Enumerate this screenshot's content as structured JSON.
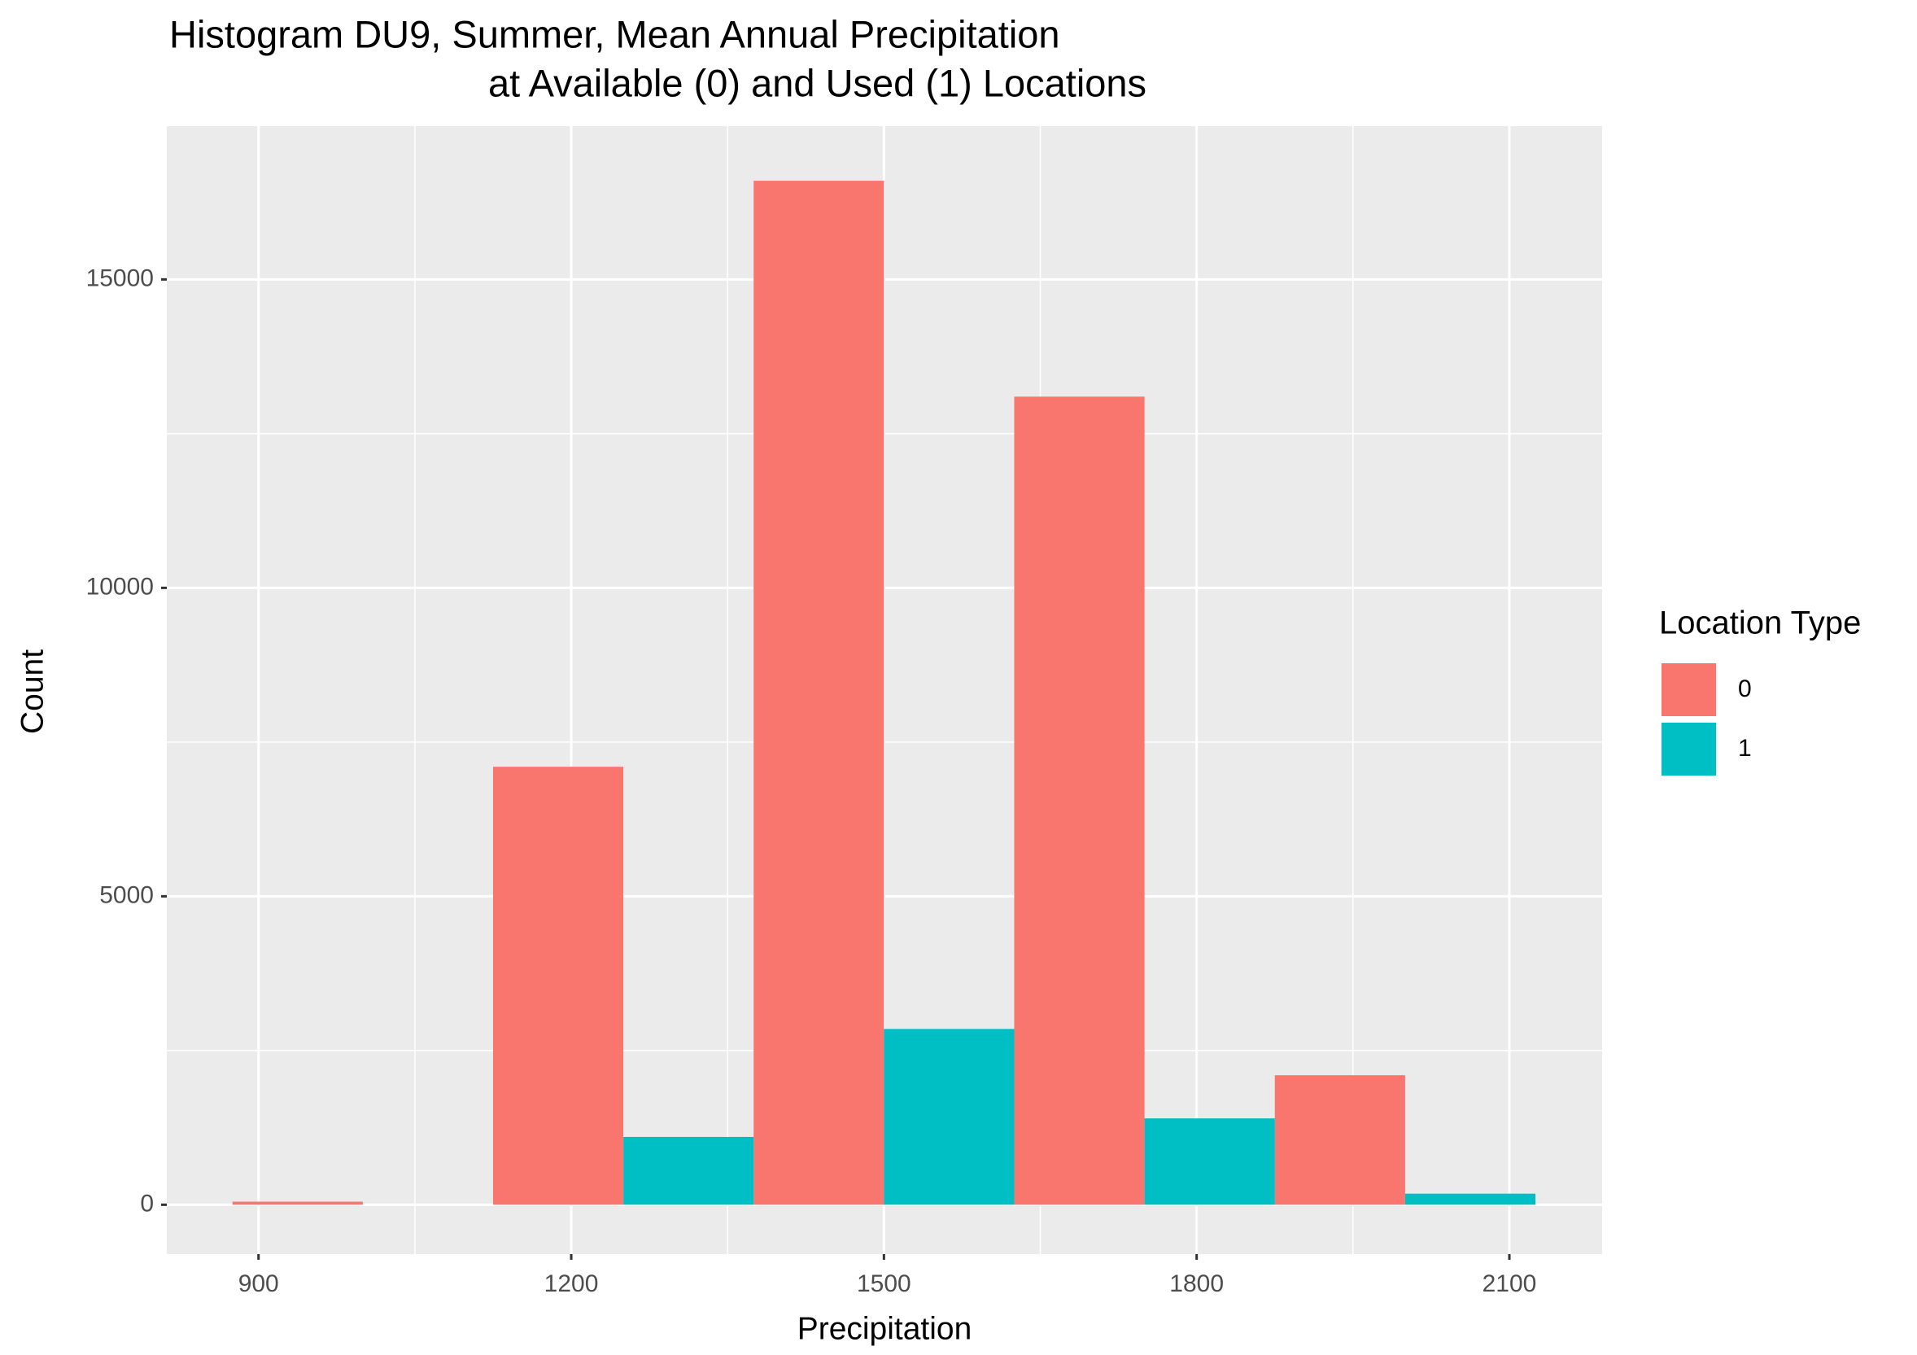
{
  "chart_data": {
    "type": "histogram",
    "title": [
      "Histogram DU9, Summer, Mean Annual Precipitation",
      "at Available (0) and Used (1) Locations"
    ],
    "x_label": "Precipitation",
    "y_label": "Count",
    "bins": [
      875,
      1125,
      1375,
      1625,
      1875,
      2125
    ],
    "series": [
      {
        "name": "0",
        "color": "#f8766d",
        "values": [
          50,
          7100,
          16600,
          13100,
          2100
        ]
      },
      {
        "name": "1",
        "color": "#00bfc4",
        "values": [
          0,
          1100,
          2850,
          1400,
          180
        ]
      }
    ],
    "legend_title": "Location Type",
    "legend": "right",
    "xlim": [
      812,
      2189
    ],
    "xticks": [
      900,
      1200,
      1500,
      1800,
      2100
    ],
    "xminor": [
      1050,
      1350,
      1650,
      1950
    ],
    "ylim": [
      -800,
      17485
    ],
    "yticks": [
      0,
      5000,
      10000,
      15000
    ],
    "yminor": [
      2500,
      7500,
      12500,
      17500
    ],
    "grid": true
  }
}
